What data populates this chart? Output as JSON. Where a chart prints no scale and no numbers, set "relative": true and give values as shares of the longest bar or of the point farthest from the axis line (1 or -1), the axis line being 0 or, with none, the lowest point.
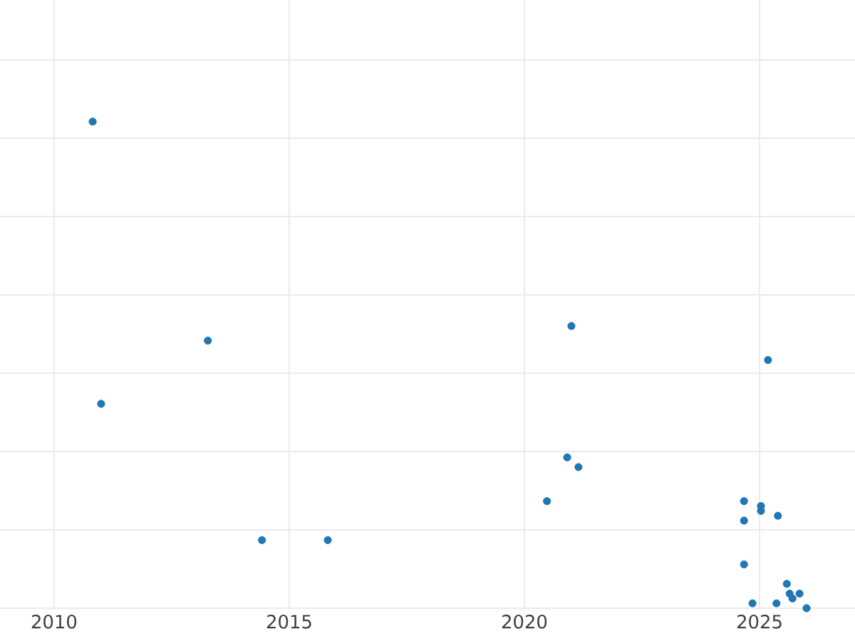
{
  "chart_data": {
    "type": "scatter",
    "relative": true,
    "grid": true,
    "tick_labels": "x",
    "xlim": [
      2008.85,
      2027.03
    ],
    "xticks": [
      2010,
      2015,
      2020,
      2025
    ],
    "x": [
      2010.82,
      2013.27,
      2011.0,
      2021.0,
      2025.18,
      2020.91,
      2021.15,
      2020.48,
      2014.42,
      2015.82,
      2024.67,
      2025.03,
      2025.03,
      2025.39,
      2024.67,
      2024.67,
      2025.58,
      2025.85,
      2025.64,
      2025.7,
      2024.85,
      2025.36,
      2026.0
    ],
    "series": [
      {
        "color": "#1f77b4",
        "values": [
          1.0,
          0.55,
          0.42,
          0.58,
          0.51,
          0.31,
          0.29,
          0.22,
          0.14,
          0.14,
          0.22,
          0.21,
          0.2,
          0.19,
          0.18,
          0.09,
          0.05,
          0.03,
          0.03,
          0.02,
          0.01,
          0.01,
          0.0
        ]
      }
    ]
  }
}
